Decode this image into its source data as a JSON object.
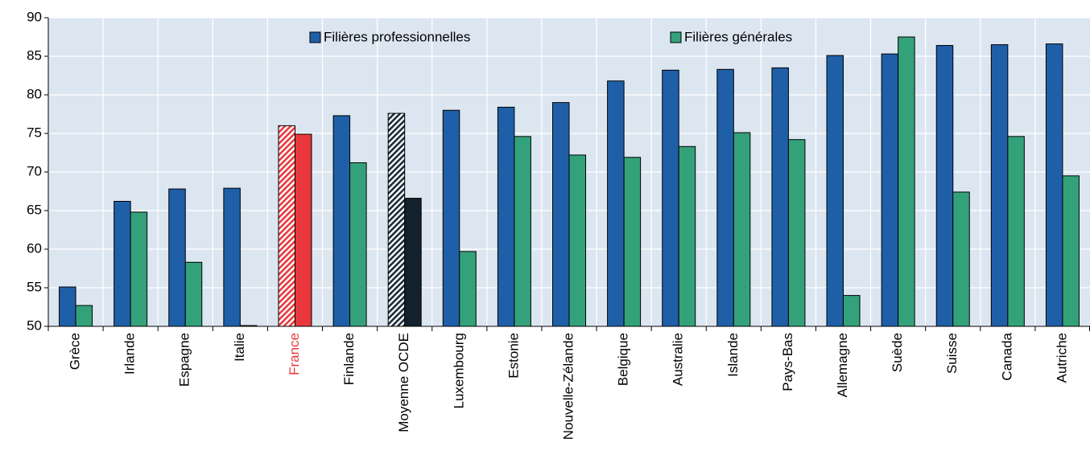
{
  "chart_data": {
    "type": "bar",
    "categories": [
      "Grèce",
      "Irlande",
      "Espagne",
      "Italie",
      "France",
      "Finlande",
      "Moyenne OCDE",
      "Luxembourg",
      "Estonie",
      "Nouvelle-Zélande",
      "Belgique",
      "Australie",
      "Islande",
      "Pays-Bas",
      "Allemagne",
      "Suède",
      "Suisse",
      "Canada",
      "Autriche"
    ],
    "series": [
      {
        "name": "Filières professionnelles",
        "color": "#1f5fa8",
        "values": [
          55.1,
          66.2,
          67.8,
          67.9,
          76.0,
          77.3,
          77.6,
          78.0,
          78.4,
          79.0,
          81.8,
          83.2,
          83.3,
          83.5,
          85.1,
          85.3,
          86.4,
          86.5,
          86.6
        ]
      },
      {
        "name": "Filières générales",
        "color": "#33a27a",
        "values": [
          52.7,
          64.8,
          58.3,
          50.1,
          74.9,
          71.2,
          66.6,
          59.7,
          74.6,
          72.2,
          71.9,
          73.3,
          75.1,
          74.2,
          54.0,
          87.5,
          67.4,
          74.6,
          69.5
        ]
      }
    ],
    "highlights": [
      {
        "index": 4,
        "colors": [
          "#e8383d",
          "#e8383d"
        ],
        "hatched": [
          true,
          false
        ],
        "label_color": "#e8383d"
      },
      {
        "index": 6,
        "colors": [
          "#1b2a3a",
          "#13212e"
        ],
        "hatched": [
          true,
          false
        ]
      }
    ],
    "ylim": [
      50,
      90
    ],
    "yticks": [
      50,
      55,
      60,
      65,
      70,
      75,
      80,
      85,
      90
    ],
    "grid": true,
    "background": "#dce6f1"
  }
}
